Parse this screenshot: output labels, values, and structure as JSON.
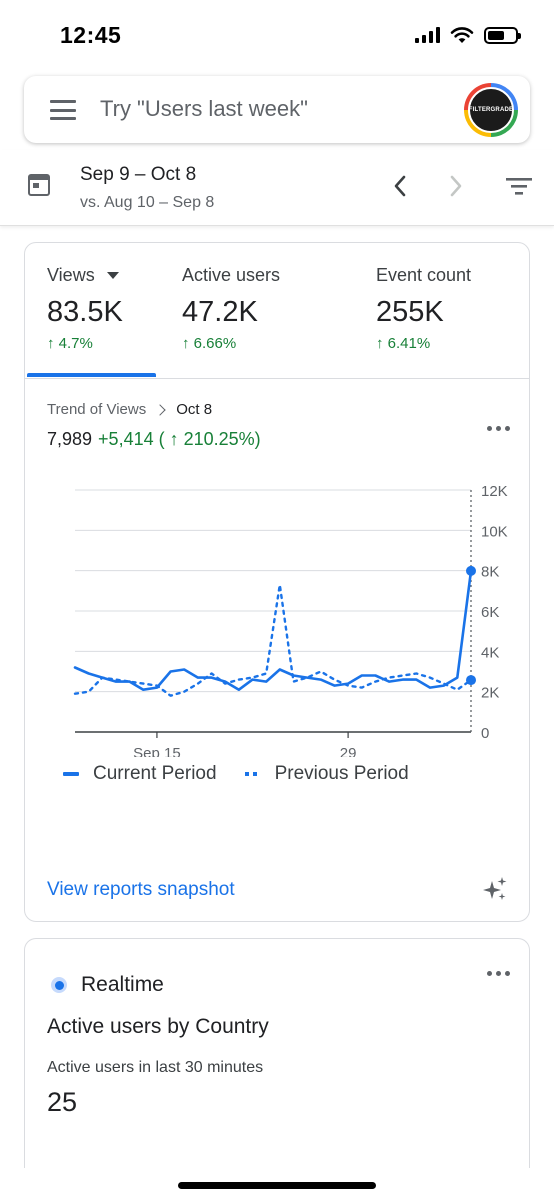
{
  "status_bar": {
    "time": "12:45"
  },
  "search": {
    "placeholder": "Try \"Users last week\"",
    "avatar_text": "FILTERGRADE"
  },
  "date_range": {
    "current": "Sep 9 – Oct 8",
    "compare": "vs. Aug 10 – Sep 8"
  },
  "metrics": [
    {
      "label": "Views",
      "value": "83.5K",
      "change": "↑ 4.7%"
    },
    {
      "label": "Active users",
      "value": "47.2K",
      "change": "↑ 6.66%"
    },
    {
      "label": "Event count",
      "value": "255K",
      "change": "↑ 6.41%"
    }
  ],
  "trend": {
    "label": "Trend of Views",
    "date": "Oct 8",
    "total": "7,989",
    "delta": "+5,414 ( ↑ 210.25%)"
  },
  "chart_data": {
    "type": "line",
    "x_tick_labels": [
      "Sep 15",
      "29"
    ],
    "y_tick_labels": [
      "0",
      "2K",
      "4K",
      "6K",
      "8K",
      "10K",
      "12K"
    ],
    "ylim": [
      0,
      12000
    ],
    "grid": true,
    "legend_position": "bottom",
    "series": [
      {
        "name": "Current Period",
        "style": "solid",
        "values": [
          3200,
          2900,
          2700,
          2500,
          2500,
          2100,
          2200,
          3000,
          3100,
          2700,
          2700,
          2500,
          2100,
          2600,
          2500,
          3100,
          2800,
          2700,
          2600,
          2300,
          2400,
          2800,
          2800,
          2500,
          2600,
          2600,
          2200,
          2300,
          2700,
          7989
        ]
      },
      {
        "name": "Previous Period",
        "style": "dotted",
        "values": [
          1900,
          2000,
          2700,
          2600,
          2500,
          2400,
          2300,
          1800,
          2000,
          2400,
          2900,
          2400,
          2600,
          2700,
          2900,
          7300,
          2500,
          2700,
          3000,
          2600,
          2300,
          2200,
          2500,
          2700,
          2800,
          2900,
          2700,
          2400,
          2100,
          2575
        ]
      }
    ]
  },
  "links": {
    "snapshot": "View reports snapshot"
  },
  "realtime": {
    "header": "Realtime",
    "title": "Active users by Country",
    "subtitle": "Active users in last 30 minutes",
    "value": "25"
  },
  "colors": {
    "accent": "#1a73e8",
    "positive": "#188038",
    "text_secondary": "#5f6368"
  }
}
